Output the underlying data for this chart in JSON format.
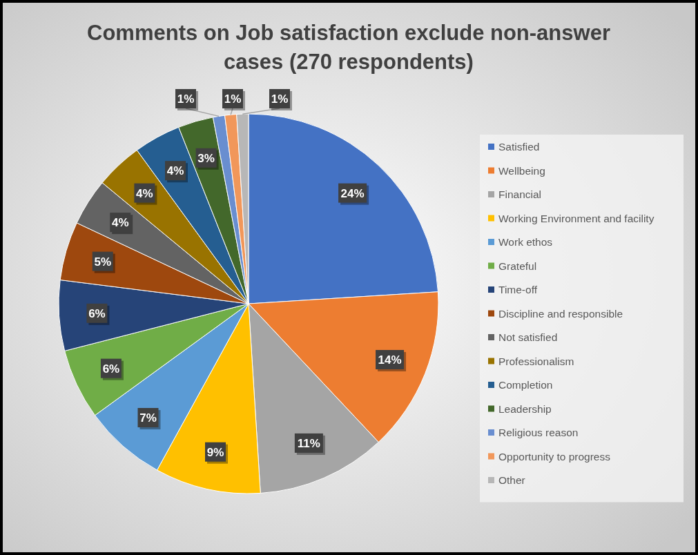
{
  "chart_data": {
    "type": "pie",
    "title": "Comments on Job satisfaction exclude non-answer cases (270 respondents)",
    "categories": [
      "Satisfied",
      "Wellbeing",
      "Financial",
      "Working Environment and facility",
      "Work ethos",
      "Grateful",
      "Time-off",
      "Discipline and responsible",
      "Not satisfied",
      "Professionalism",
      "Completion",
      "Leadership",
      "Religious reason",
      "Opportunity to progress",
      "Other"
    ],
    "values": [
      24,
      14,
      11,
      9,
      7,
      6,
      6,
      5,
      4,
      4,
      4,
      3,
      1,
      1,
      1
    ],
    "value_labels": [
      "24%",
      "14%",
      "11%",
      "9%",
      "7%",
      "6%",
      "6%",
      "5%",
      "4%",
      "4%",
      "4%",
      "3%",
      "1%",
      "1%",
      "1%"
    ],
    "colors": [
      "#4472c4",
      "#ed7d31",
      "#a5a5a5",
      "#ffc000",
      "#5b9bd5",
      "#70ad47",
      "#264478",
      "#9e480e",
      "#636363",
      "#997300",
      "#255e91",
      "#43682b",
      "#698ed0",
      "#f1975a",
      "#b7b7b7"
    ],
    "legend": "right"
  }
}
